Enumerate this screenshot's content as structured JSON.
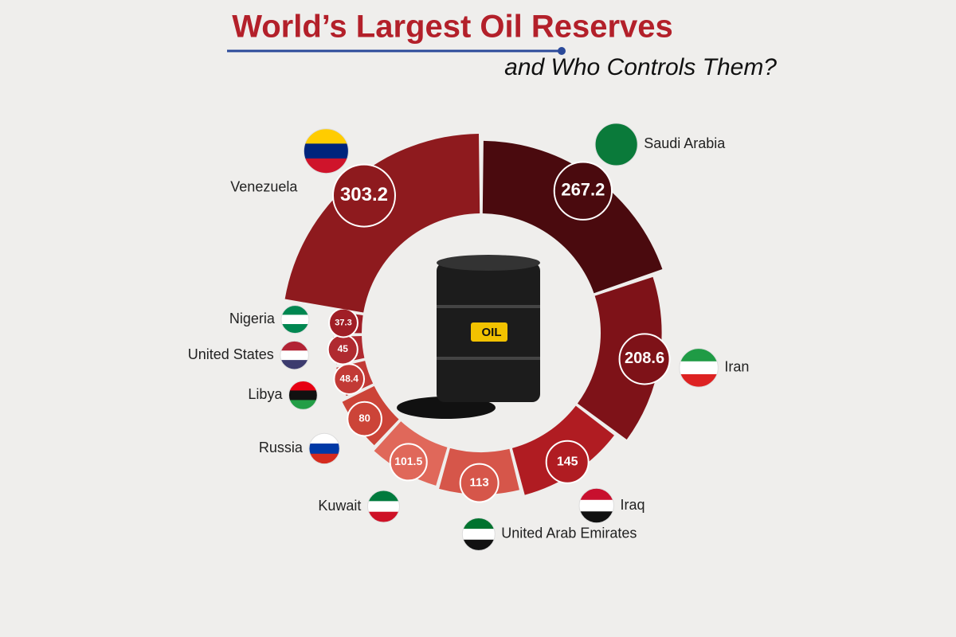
{
  "chart_data": {
    "type": "donut",
    "title": "World’s Largest Oil Reserves",
    "subtitle": "and Who Controls Them?",
    "center_label": "OIL",
    "categories": [
      "Saudi Arabia",
      "Iran",
      "Iraq",
      "United Arab Emirates",
      "Kuwait",
      "Russia",
      "Libya",
      "United States",
      "Nigeria",
      "Venezuela"
    ],
    "values": [
      267.2,
      208.6,
      145,
      113,
      101.5,
      80,
      48.4,
      45,
      37.3,
      303.2
    ],
    "colors": [
      "#4a0a0e",
      "#7e1218",
      "#b01c22",
      "#d6564a",
      "#e0685a",
      "#cc4438",
      "#c23a36",
      "#b02a30",
      "#a01e26",
      "#8e1a1e"
    ]
  }
}
